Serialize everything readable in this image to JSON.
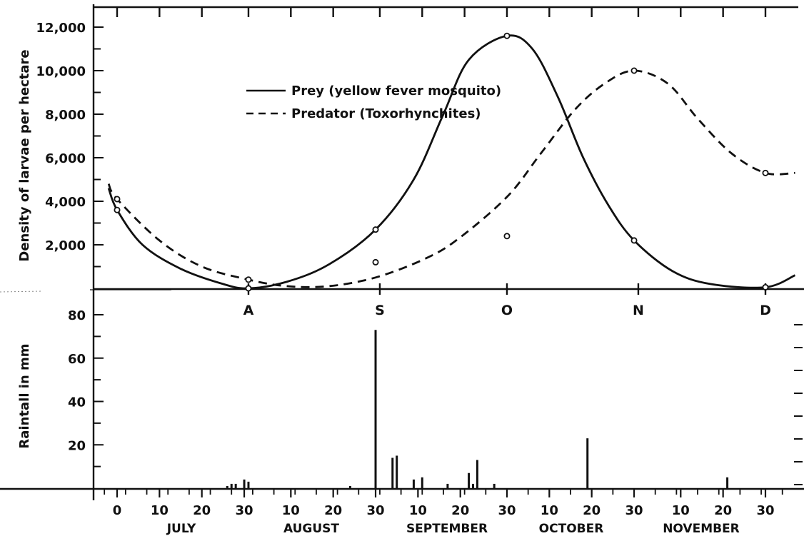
{
  "chart_data": [
    {
      "type": "line",
      "ylabel": "Density of larvae per hectare",
      "ylim": [
        0,
        12000
      ],
      "yticks": [
        "12,000",
        "10,000",
        "8,000",
        "6,000",
        "4,000",
        "2,000"
      ],
      "month_markers": [
        "A",
        "S",
        "O",
        "N",
        "D"
      ],
      "legend_placement": "upper-center",
      "series": [
        {
          "name": "Prey (yellow fever mosquito)",
          "line_style": "solid",
          "observed": [
            {
              "x": 0,
              "y": 3600
            },
            {
              "x": 31,
              "y": 0
            },
            {
              "x": 61,
              "y": 2700
            },
            {
              "x": 92,
              "y": 11600
            },
            {
              "x": 122,
              "y": 2200
            },
            {
              "x": 153,
              "y": 50
            }
          ],
          "curve": [
            {
              "x": -2,
              "y": 4600
            },
            {
              "x": 0,
              "y": 3600
            },
            {
              "x": 6,
              "y": 2000
            },
            {
              "x": 15,
              "y": 900
            },
            {
              "x": 25,
              "y": 200
            },
            {
              "x": 31,
              "y": 0
            },
            {
              "x": 40,
              "y": 300
            },
            {
              "x": 50,
              "y": 1100
            },
            {
              "x": 61,
              "y": 2700
            },
            {
              "x": 70,
              "y": 5000
            },
            {
              "x": 77,
              "y": 8000
            },
            {
              "x": 83,
              "y": 10500
            },
            {
              "x": 92,
              "y": 11600
            },
            {
              "x": 98,
              "y": 11000
            },
            {
              "x": 104,
              "y": 8800
            },
            {
              "x": 110,
              "y": 6000
            },
            {
              "x": 116,
              "y": 3800
            },
            {
              "x": 122,
              "y": 2200
            },
            {
              "x": 131,
              "y": 800
            },
            {
              "x": 140,
              "y": 200
            },
            {
              "x": 153,
              "y": 50
            },
            {
              "x": 160,
              "y": 600
            }
          ]
        },
        {
          "name": "Predator (Toxorhynchites)",
          "line_style": "dashed",
          "observed": [
            {
              "x": 0,
              "y": 4100
            },
            {
              "x": 31,
              "y": 400
            },
            {
              "x": 61,
              "y": 1200
            },
            {
              "x": 92,
              "y": 2400
            },
            {
              "x": 122,
              "y": 10000
            },
            {
              "x": 153,
              "y": 5300
            }
          ],
          "curve": [
            {
              "x": -2,
              "y": 4800
            },
            {
              "x": 0,
              "y": 4100
            },
            {
              "x": 10,
              "y": 2200
            },
            {
              "x": 20,
              "y": 1000
            },
            {
              "x": 31,
              "y": 400
            },
            {
              "x": 40,
              "y": 100
            },
            {
              "x": 50,
              "y": 100
            },
            {
              "x": 61,
              "y": 500
            },
            {
              "x": 72,
              "y": 1300
            },
            {
              "x": 80,
              "y": 2200
            },
            {
              "x": 92,
              "y": 4200
            },
            {
              "x": 100,
              "y": 6200
            },
            {
              "x": 108,
              "y": 8200
            },
            {
              "x": 115,
              "y": 9400
            },
            {
              "x": 122,
              "y": 10000
            },
            {
              "x": 130,
              "y": 9400
            },
            {
              "x": 137,
              "y": 7800
            },
            {
              "x": 145,
              "y": 6200
            },
            {
              "x": 153,
              "y": 5300
            },
            {
              "x": 160,
              "y": 5300
            }
          ]
        }
      ]
    },
    {
      "type": "bar",
      "ylabel": "Raintall in mm",
      "ylim": [
        0,
        80
      ],
      "yticks": [
        "80",
        "60",
        "40",
        "20"
      ],
      "x_tick_labels": [
        "0",
        "10",
        "20",
        "30",
        "10",
        "20",
        "30",
        "10",
        "20",
        "30",
        "10",
        "20",
        "30",
        "10",
        "20",
        "30"
      ],
      "month_labels": [
        "JULY",
        "AUGUST",
        "SEPTEMBER",
        "OCTOBER",
        "NOVEMBER"
      ],
      "bars": [
        {
          "x": 26,
          "y": 1
        },
        {
          "x": 27,
          "y": 2
        },
        {
          "x": 28,
          "y": 2
        },
        {
          "x": 30,
          "y": 4
        },
        {
          "x": 31,
          "y": 3
        },
        {
          "x": 55,
          "y": 1
        },
        {
          "x": 61,
          "y": 73
        },
        {
          "x": 65,
          "y": 14
        },
        {
          "x": 66,
          "y": 15
        },
        {
          "x": 70,
          "y": 4
        },
        {
          "x": 72,
          "y": 5
        },
        {
          "x": 78,
          "y": 2
        },
        {
          "x": 83,
          "y": 7
        },
        {
          "x": 84,
          "y": 2
        },
        {
          "x": 85,
          "y": 13
        },
        {
          "x": 89,
          "y": 2
        },
        {
          "x": 111,
          "y": 23
        },
        {
          "x": 144,
          "y": 5
        }
      ]
    }
  ]
}
